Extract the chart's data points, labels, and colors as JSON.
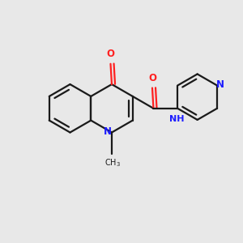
{
  "bg_color": "#e8e8e8",
  "bond_color": "#1a1a1a",
  "N_color": "#1c1cff",
  "O_color": "#ff2020",
  "fig_size": [
    3.0,
    3.0
  ],
  "dpi": 100,
  "lw": 1.6,
  "fs": 8.5,
  "xlim": [
    -1.1,
    1.1
  ],
  "ylim": [
    -1.05,
    1.05
  ]
}
